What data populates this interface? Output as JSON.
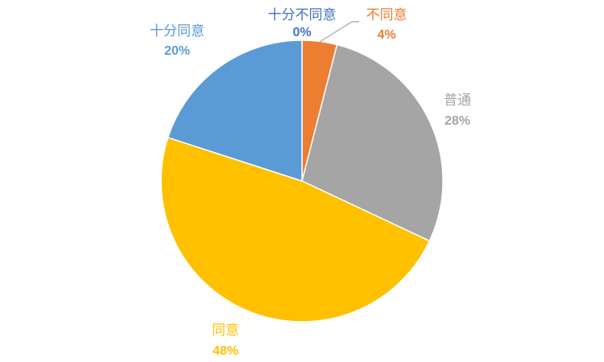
{
  "chart_data": {
    "type": "pie",
    "start_angle_deg": 0,
    "direction": "clockwise",
    "slices": [
      {
        "label": "十分不同意",
        "value": 0,
        "display": "0%",
        "color": "#4472C4"
      },
      {
        "label": "不同意",
        "value": 4,
        "display": "4%",
        "color": "#ED7D31"
      },
      {
        "label": "普通",
        "value": 28,
        "display": "28%",
        "color": "#A5A5A5"
      },
      {
        "label": "同意",
        "value": 48,
        "display": "48%",
        "color": "#FFC000"
      },
      {
        "label": "十分同意",
        "value": 20,
        "display": "20%",
        "color": "#5B9BD5"
      }
    ],
    "legend": "none"
  }
}
